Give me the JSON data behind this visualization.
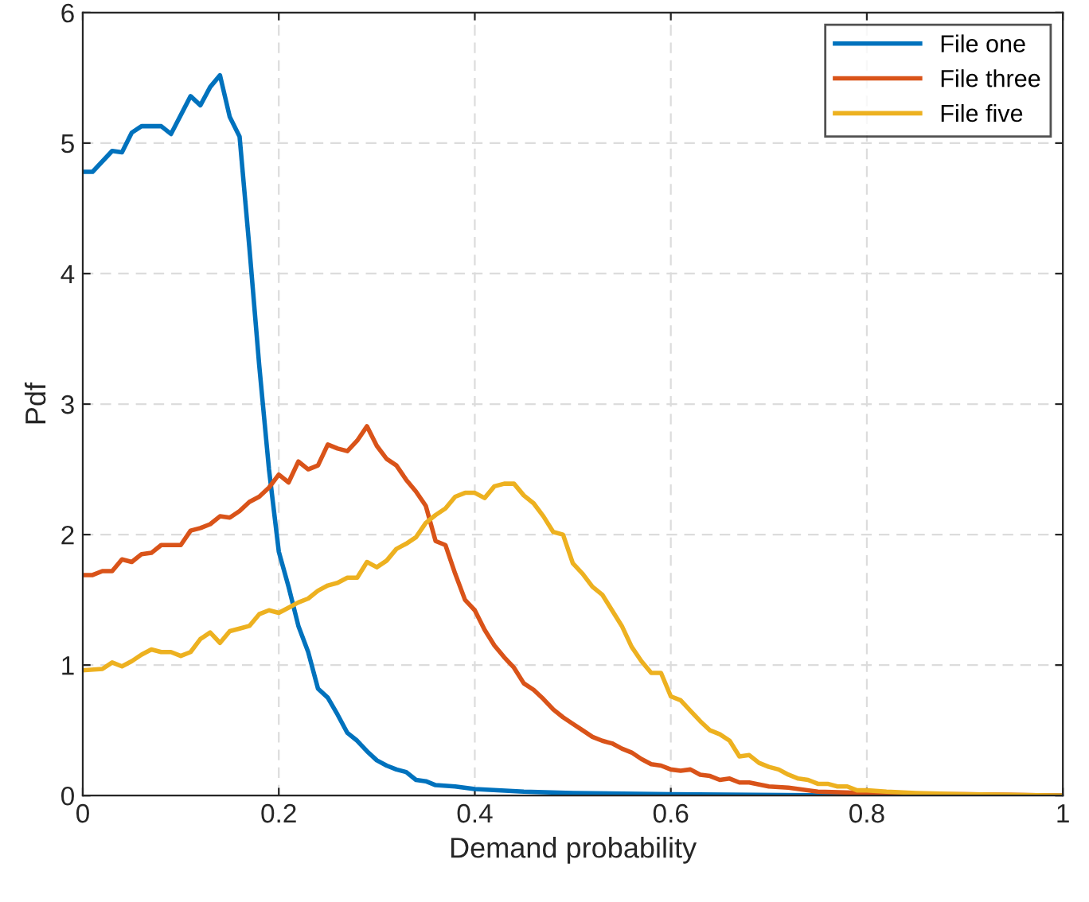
{
  "chart_data": {
    "type": "line",
    "xlabel": "Demand probability",
    "ylabel": "Pdf",
    "xlim": [
      0,
      1
    ],
    "ylim": [
      0,
      6
    ],
    "xticks": [
      0,
      0.2,
      0.4,
      0.6,
      0.8,
      1
    ],
    "yticks": [
      0,
      1,
      2,
      3,
      4,
      5,
      6
    ],
    "grid": true,
    "legend": "top right",
    "line_style": "solid",
    "marker": "none",
    "series": [
      {
        "name": "File one",
        "color": "#0072bd",
        "x": [
          0,
          0.01,
          0.03,
          0.04,
          0.05,
          0.06,
          0.08,
          0.09,
          0.11,
          0.12,
          0.13,
          0.14,
          0.15,
          0.16,
          0.17,
          0.18,
          0.19,
          0.2,
          0.21,
          0.22,
          0.23,
          0.24,
          0.25,
          0.26,
          0.27,
          0.28,
          0.29,
          0.3,
          0.31,
          0.32,
          0.33,
          0.34,
          0.35,
          0.36,
          0.38,
          0.4,
          0.45,
          0.5,
          0.6,
          0.8,
          1
        ],
        "values": [
          4.78,
          4.78,
          4.94,
          4.93,
          5.08,
          5.13,
          5.13,
          5.07,
          5.36,
          5.29,
          5.43,
          5.52,
          5.2,
          5.05,
          4.2,
          3.3,
          2.5,
          1.87,
          1.6,
          1.3,
          1.1,
          0.82,
          0.75,
          0.62,
          0.48,
          0.42,
          0.34,
          0.27,
          0.23,
          0.2,
          0.18,
          0.12,
          0.11,
          0.08,
          0.07,
          0.05,
          0.03,
          0.02,
          0.01,
          0,
          0
        ]
      },
      {
        "name": "File three",
        "color": "#d95319",
        "x": [
          0,
          0.01,
          0.02,
          0.03,
          0.04,
          0.05,
          0.06,
          0.07,
          0.08,
          0.09,
          0.1,
          0.11,
          0.12,
          0.13,
          0.14,
          0.15,
          0.16,
          0.17,
          0.18,
          0.19,
          0.2,
          0.21,
          0.22,
          0.23,
          0.24,
          0.25,
          0.26,
          0.27,
          0.28,
          0.29,
          0.3,
          0.31,
          0.32,
          0.33,
          0.34,
          0.35,
          0.36,
          0.37,
          0.38,
          0.39,
          0.4,
          0.41,
          0.42,
          0.43,
          0.44,
          0.45,
          0.46,
          0.47,
          0.48,
          0.49,
          0.5,
          0.51,
          0.52,
          0.53,
          0.54,
          0.55,
          0.56,
          0.57,
          0.58,
          0.59,
          0.6,
          0.61,
          0.62,
          0.63,
          0.64,
          0.65,
          0.66,
          0.67,
          0.68,
          0.7,
          0.72,
          0.75,
          0.8,
          0.85,
          0.9,
          1
        ],
        "values": [
          1.69,
          1.69,
          1.72,
          1.72,
          1.81,
          1.79,
          1.85,
          1.86,
          1.92,
          1.92,
          1.92,
          2.03,
          2.05,
          2.08,
          2.14,
          2.13,
          2.18,
          2.25,
          2.29,
          2.36,
          2.46,
          2.4,
          2.56,
          2.5,
          2.53,
          2.69,
          2.66,
          2.64,
          2.72,
          2.83,
          2.68,
          2.58,
          2.53,
          2.42,
          2.33,
          2.22,
          1.95,
          1.92,
          1.7,
          1.5,
          1.42,
          1.27,
          1.15,
          1.06,
          0.98,
          0.86,
          0.81,
          0.74,
          0.66,
          0.6,
          0.55,
          0.5,
          0.45,
          0.42,
          0.4,
          0.36,
          0.33,
          0.28,
          0.24,
          0.23,
          0.2,
          0.19,
          0.2,
          0.16,
          0.15,
          0.12,
          0.13,
          0.1,
          0.1,
          0.07,
          0.06,
          0.03,
          0.02,
          0.01,
          0.01,
          0
        ]
      },
      {
        "name": "File five",
        "color": "#edb120",
        "x": [
          0,
          0.02,
          0.03,
          0.04,
          0.05,
          0.06,
          0.07,
          0.08,
          0.09,
          0.1,
          0.11,
          0.12,
          0.13,
          0.14,
          0.15,
          0.16,
          0.17,
          0.18,
          0.19,
          0.2,
          0.21,
          0.22,
          0.23,
          0.24,
          0.25,
          0.26,
          0.27,
          0.28,
          0.29,
          0.3,
          0.31,
          0.32,
          0.33,
          0.34,
          0.35,
          0.36,
          0.37,
          0.38,
          0.39,
          0.4,
          0.41,
          0.42,
          0.43,
          0.44,
          0.45,
          0.46,
          0.47,
          0.48,
          0.49,
          0.5,
          0.51,
          0.52,
          0.53,
          0.54,
          0.55,
          0.56,
          0.57,
          0.58,
          0.59,
          0.6,
          0.61,
          0.62,
          0.63,
          0.64,
          0.65,
          0.66,
          0.67,
          0.68,
          0.69,
          0.7,
          0.71,
          0.72,
          0.73,
          0.74,
          0.75,
          0.76,
          0.77,
          0.78,
          0.79,
          0.8,
          0.82,
          0.85,
          0.9,
          1
        ],
        "values": [
          0.96,
          0.97,
          1.02,
          0.99,
          1.03,
          1.08,
          1.12,
          1.1,
          1.1,
          1.07,
          1.1,
          1.2,
          1.25,
          1.17,
          1.26,
          1.28,
          1.3,
          1.39,
          1.42,
          1.4,
          1.44,
          1.48,
          1.51,
          1.57,
          1.61,
          1.63,
          1.67,
          1.67,
          1.79,
          1.75,
          1.8,
          1.89,
          1.93,
          1.98,
          2.09,
          2.15,
          2.2,
          2.29,
          2.32,
          2.32,
          2.28,
          2.37,
          2.39,
          2.39,
          2.3,
          2.24,
          2.14,
          2.02,
          2.0,
          1.78,
          1.7,
          1.6,
          1.54,
          1.42,
          1.3,
          1.14,
          1.03,
          0.94,
          0.94,
          0.76,
          0.73,
          0.65,
          0.57,
          0.5,
          0.47,
          0.42,
          0.3,
          0.31,
          0.25,
          0.22,
          0.2,
          0.16,
          0.13,
          0.12,
          0.09,
          0.09,
          0.07,
          0.07,
          0.04,
          0.04,
          0.03,
          0.02,
          0.01,
          0
        ]
      }
    ]
  }
}
